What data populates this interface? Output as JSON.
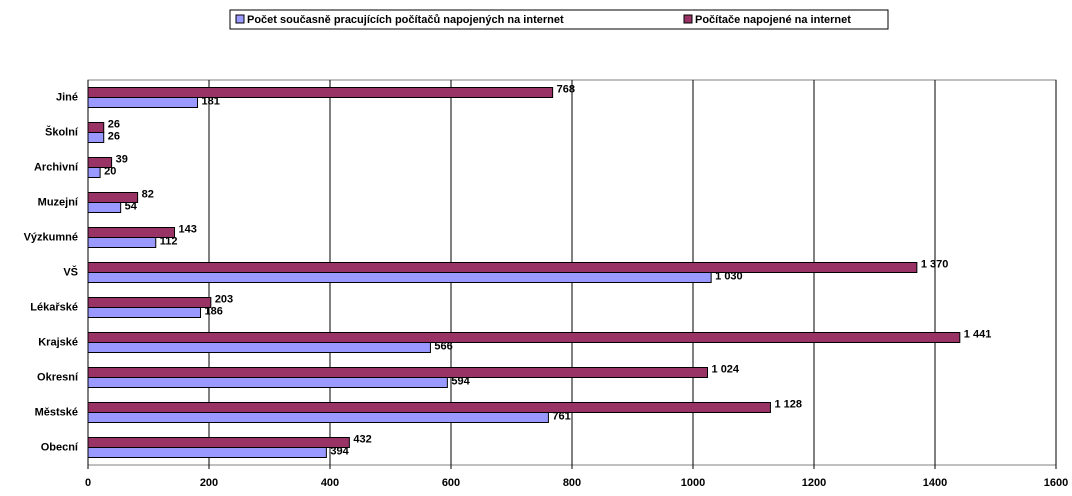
{
  "chart_data": {
    "type": "bar",
    "orientation": "horizontal",
    "categories": [
      "Obecní",
      "Městské",
      "Okresní",
      "Krajské",
      "Lékařské",
      "VŠ",
      "Výzkumné",
      "Muzejní",
      "Archivní",
      "Školní",
      "Jiné"
    ],
    "series": [
      {
        "name": "Počet současně pracujících počítačů  napojených na internet",
        "color": "#9999ff",
        "values": [
          394,
          761,
          594,
          566,
          186,
          1030,
          112,
          54,
          20,
          26,
          181
        ],
        "value_labels": [
          "394",
          "761",
          "594",
          "566",
          "186",
          "1 030",
          "112",
          "54",
          "20",
          "26",
          "181"
        ]
      },
      {
        "name": "Počítače napojené na internet",
        "color": "#993366",
        "values": [
          432,
          1128,
          1024,
          1441,
          203,
          1370,
          143,
          82,
          39,
          26,
          768
        ],
        "value_labels": [
          "432",
          "1 128",
          "1 024",
          "1 441",
          "203",
          "1 370",
          "143",
          "82",
          "39",
          "26",
          "768"
        ]
      }
    ],
    "xlim": [
      0,
      1600
    ],
    "xticks": [
      0,
      200,
      400,
      600,
      800,
      1000,
      1200,
      1400,
      1600
    ],
    "grid": true
  }
}
